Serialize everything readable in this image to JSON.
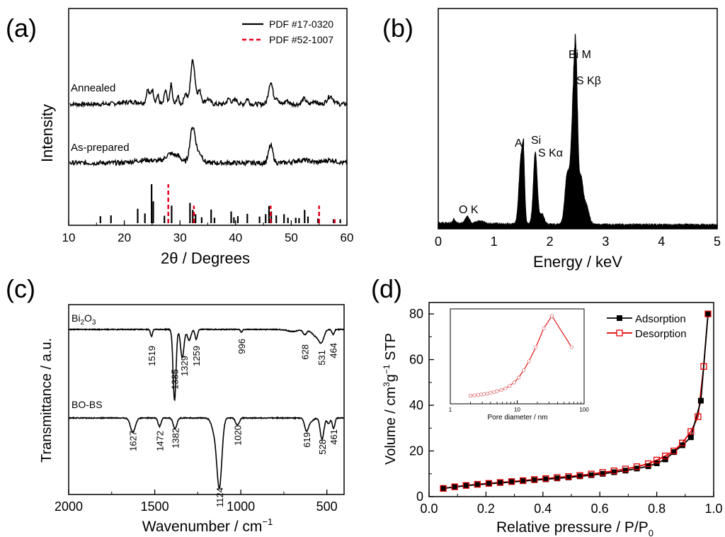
{
  "panels": {
    "a": {
      "tag": "(a)",
      "xlabel": "2θ / Degrees",
      "ylabel": "Intensity",
      "xticks": [
        "10",
        "20",
        "30",
        "40",
        "50",
        "60"
      ],
      "legend": [
        "PDF #17-0320",
        "PDF #52-1007"
      ],
      "trace_labels": [
        "Annealed",
        "As-prepared"
      ]
    },
    "b": {
      "tag": "(b)",
      "xlabel": "Energy / keV",
      "xticks": [
        "0",
        "1",
        "2",
        "3",
        "4",
        "5"
      ],
      "peak_labels": [
        "O K",
        "Al",
        "Si",
        "S Kα",
        "Bi M",
        "S Kβ"
      ]
    },
    "c": {
      "tag": "(c)",
      "xlabel_base": "Wavenumber / cm",
      "xlabel_sup": "−1",
      "ylabel": "Transmittance / a.u.",
      "xticks": [
        "2000",
        "1500",
        "1000",
        "500"
      ],
      "trace1_base": "Bi",
      "trace1_sub1": "2",
      "trace1_mid": "O",
      "trace1_sub2": "3",
      "trace2": "BO-BS"
    },
    "d": {
      "tag": "(d)",
      "xlabel_base": "Relative pressure / P/P",
      "xlabel_sub": "0",
      "ylabel_a": "Volume / cm",
      "ylabel_sup1": "3",
      "ylabel_b": "g",
      "ylabel_sup2": "−1",
      "ylabel_c": " STP",
      "xticks": [
        "0.0",
        "0.2",
        "0.4",
        "0.6",
        "0.8",
        "1.0"
      ],
      "yticks": [
        "0",
        "20",
        "40",
        "60",
        "80"
      ],
      "legend": [
        "Adsorption",
        "Desorption"
      ],
      "inset_xlabel": "Pore diameter / nm",
      "inset_xticks": [
        "1",
        "10",
        "100"
      ]
    }
  },
  "colors": {
    "black": "#000000",
    "red": "#e00000",
    "pdf_red": "#e3001b"
  },
  "chart_data": [
    {
      "type": "line",
      "title": "",
      "xlabel": "2θ / Degrees",
      "ylabel": "Intensity",
      "xlim": [
        10,
        60
      ],
      "series": [
        {
          "name": "Annealed",
          "peaks_2theta": [
            24.2,
            25.0,
            27.4,
            28.4,
            32.3,
            46.3,
            57.0
          ],
          "main_peak": 32.3
        },
        {
          "name": "As-prepared",
          "peaks_2theta": [
            28.3,
            32.3,
            46.3
          ],
          "main_peak": 32.3
        }
      ],
      "reference_black_lines": [
        {
          "x": 15.7,
          "h": 0.18
        },
        {
          "x": 17.6,
          "h": 0.2
        },
        {
          "x": 22.4,
          "h": 0.37
        },
        {
          "x": 23.7,
          "h": 0.25
        },
        {
          "x": 24.9,
          "h": 1.0
        },
        {
          "x": 25.2,
          "h": 0.56
        },
        {
          "x": 27.2,
          "h": 0.19
        },
        {
          "x": 28.5,
          "h": 0.45
        },
        {
          "x": 31.8,
          "h": 0.52
        },
        {
          "x": 32.3,
          "h": 0.34
        },
        {
          "x": 32.8,
          "h": 0.23
        },
        {
          "x": 33.9,
          "h": 0.15
        },
        {
          "x": 35.6,
          "h": 0.35
        },
        {
          "x": 36.2,
          "h": 0.14
        },
        {
          "x": 39.2,
          "h": 0.3
        },
        {
          "x": 39.7,
          "h": 0.15
        },
        {
          "x": 40.4,
          "h": 0.18
        },
        {
          "x": 42.1,
          "h": 0.24
        },
        {
          "x": 44.3,
          "h": 0.17
        },
        {
          "x": 45.4,
          "h": 0.23
        },
        {
          "x": 46.0,
          "h": 0.44
        },
        {
          "x": 46.4,
          "h": 0.3
        },
        {
          "x": 47.3,
          "h": 0.2
        },
        {
          "x": 48.7,
          "h": 0.23
        },
        {
          "x": 49.4,
          "h": 0.14
        },
        {
          "x": 50.8,
          "h": 0.14
        },
        {
          "x": 51.4,
          "h": 0.13
        },
        {
          "x": 52.4,
          "h": 0.34
        },
        {
          "x": 53.0,
          "h": 0.17
        },
        {
          "x": 54.8,
          "h": 0.12
        },
        {
          "x": 57.6,
          "h": 0.1
        },
        {
          "x": 58.8,
          "h": 0.1
        }
      ],
      "reference_red_lines": [
        {
          "x": 27.9,
          "h": 1.0
        },
        {
          "x": 32.5,
          "h": 0.45
        },
        {
          "x": 46.3,
          "h": 0.45
        },
        {
          "x": 55.0,
          "h": 0.45
        },
        {
          "x": 57.8,
          "h": 0.1
        }
      ]
    },
    {
      "type": "area",
      "title": "",
      "xlabel": "Energy / keV",
      "ylabel": "",
      "xlim": [
        0,
        5
      ],
      "peaks_keV": [
        {
          "label": "O K",
          "x": 0.52,
          "rel_height": 0.03
        },
        {
          "label": "Al",
          "x": 1.49,
          "rel_height": 0.49
        },
        {
          "label": "Si",
          "x": 1.74,
          "rel_height": 0.48
        },
        {
          "label": "S Kα",
          "x": 2.31,
          "rel_height": 0.36
        },
        {
          "label": "Bi M",
          "x": 2.42,
          "rel_height": 1.0
        },
        {
          "label": "S Kβ",
          "x": 2.47,
          "rel_height": 0.82
        }
      ]
    },
    {
      "type": "line",
      "title": "",
      "xlabel": "Wavenumber / cm−1",
      "ylabel": "Transmittance / a.u.",
      "xlim": [
        2000,
        400
      ],
      "series": [
        {
          "name": "Bi2O3",
          "bands_cm-1": [
            {
              "x": 1519,
              "depth": 0.12
            },
            {
              "x": 1385,
              "depth": 1.0
            },
            {
              "x": 1329,
              "depth": 0.55
            },
            {
              "x": 1259,
              "depth": 0.15
            },
            {
              "x": 996,
              "depth": 0.04
            },
            {
              "x": 628,
              "depth": 0.07
            },
            {
              "x": 531,
              "depth": 0.14
            },
            {
              "x": 464,
              "depth": 0.07
            }
          ]
        },
        {
          "name": "BO-BS",
          "bands_cm-1": [
            {
              "x": 1627,
              "depth": 0.2
            },
            {
              "x": 1472,
              "depth": 0.12
            },
            {
              "x": 1382,
              "depth": 0.15
            },
            {
              "x": 1124,
              "depth": 1.0
            },
            {
              "x": 1020,
              "depth": 0.1
            },
            {
              "x": 619,
              "depth": 0.15
            },
            {
              "x": 528,
              "depth": 0.3
            },
            {
              "x": 461,
              "depth": 0.15
            }
          ]
        }
      ]
    },
    {
      "type": "line",
      "title": "",
      "xlabel": "Relative pressure / P/P0",
      "ylabel": "Volume / cm3g−1 STP",
      "xlim": [
        0.0,
        1.0
      ],
      "ylim": [
        0,
        85
      ],
      "series": [
        {
          "name": "Adsorption",
          "x": [
            0.05,
            0.09,
            0.13,
            0.17,
            0.21,
            0.25,
            0.29,
            0.33,
            0.37,
            0.41,
            0.45,
            0.49,
            0.53,
            0.57,
            0.61,
            0.65,
            0.69,
            0.73,
            0.77,
            0.8,
            0.83,
            0.86,
            0.89,
            0.92,
            0.955,
            0.98
          ],
          "y": [
            3.6,
            4.2,
            4.8,
            5.2,
            5.6,
            6.0,
            6.4,
            6.8,
            7.2,
            7.6,
            8.0,
            8.4,
            8.9,
            9.4,
            10.0,
            10.7,
            11.4,
            12.3,
            13.3,
            14.6,
            16.3,
            19.5,
            22.5,
            26,
            42,
            80
          ]
        },
        {
          "name": "Desorption",
          "x": [
            0.05,
            0.09,
            0.13,
            0.17,
            0.21,
            0.25,
            0.29,
            0.33,
            0.37,
            0.41,
            0.45,
            0.49,
            0.53,
            0.57,
            0.61,
            0.65,
            0.69,
            0.73,
            0.77,
            0.8,
            0.83,
            0.86,
            0.89,
            0.92,
            0.945,
            0.965,
            0.98
          ],
          "y": [
            3.6,
            4.3,
            4.9,
            5.4,
            5.8,
            6.2,
            6.6,
            7.0,
            7.5,
            7.9,
            8.4,
            8.8,
            9.3,
            9.9,
            10.6,
            11.3,
            12.1,
            13.1,
            14.4,
            16.0,
            17.8,
            20.0,
            23.5,
            28.5,
            35,
            57,
            80
          ]
        }
      ],
      "inset": {
        "type": "line",
        "xscale": "log",
        "xlabel": "Pore diameter / nm",
        "xlim": [
          1,
          100
        ],
        "x": [
          2.0,
          2.3,
          2.6,
          2.9,
          3.2,
          3.6,
          4.0,
          4.5,
          5.0,
          5.8,
          6.7,
          7.7,
          9.0,
          10.5,
          12.5,
          15,
          19,
          25,
          33,
          65
        ],
        "y": [
          0.03,
          0.035,
          0.04,
          0.045,
          0.05,
          0.055,
          0.065,
          0.075,
          0.085,
          0.1,
          0.12,
          0.15,
          0.19,
          0.25,
          0.34,
          0.45,
          0.62,
          0.85,
          1.0,
          0.62
        ]
      }
    }
  ]
}
